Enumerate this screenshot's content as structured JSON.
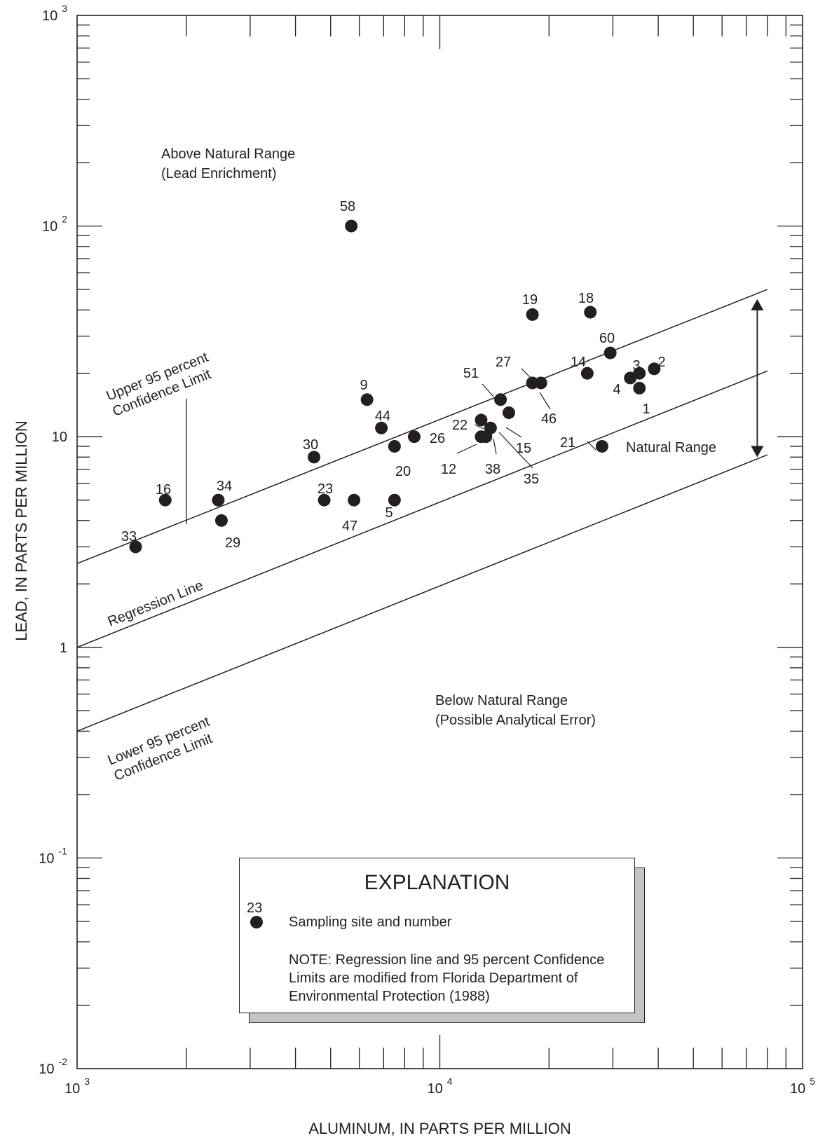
{
  "chart_data": {
    "type": "scatter",
    "xlabel": "ALUMINUM, IN PARTS PER MILLION",
    "ylabel": "LEAD, IN PARTS PER MILLION",
    "x_scale": "log",
    "y_scale": "log",
    "xlim": [
      1000,
      100000
    ],
    "ylim": [
      0.01,
      1000
    ],
    "x_ticks": [
      {
        "base": "10",
        "exp": "3",
        "value": 1000
      },
      {
        "base": "10",
        "exp": "4",
        "value": 10000
      },
      {
        "base": "10",
        "exp": "5",
        "value": 100000
      }
    ],
    "y_ticks": [
      {
        "base": "10",
        "exp": "-2",
        "value": 0.01
      },
      {
        "base": "10",
        "exp": "-1",
        "value": 0.1
      },
      {
        "base": "1",
        "exp": "",
        "value": 1
      },
      {
        "base": "10",
        "exp": "",
        "value": 10
      },
      {
        "base": "10",
        "exp": "2",
        "value": 100
      },
      {
        "base": "10",
        "exp": "3",
        "value": 1000
      }
    ],
    "points": [
      {
        "label": "1",
        "x": 35500,
        "y": 17
      },
      {
        "label": "2",
        "x": 39000,
        "y": 21
      },
      {
        "label": "3",
        "x": 35500,
        "y": 20
      },
      {
        "label": "4",
        "x": 33500,
        "y": 19
      },
      {
        "label": "5",
        "x": 7500,
        "y": 5
      },
      {
        "label": "9",
        "x": 6300,
        "y": 15
      },
      {
        "label": "12",
        "x": 13000,
        "y": 10
      },
      {
        "label": "14",
        "x": 25500,
        "y": 20
      },
      {
        "label": "15",
        "x": 15500,
        "y": 13
      },
      {
        "label": "16",
        "x": 1750,
        "y": 5
      },
      {
        "label": "18",
        "x": 26000,
        "y": 39
      },
      {
        "label": "19",
        "x": 18000,
        "y": 38
      },
      {
        "label": "20",
        "x": 7500,
        "y": 9
      },
      {
        "label": "21",
        "x": 28000,
        "y": 9
      },
      {
        "label": "22",
        "x": 13000,
        "y": 12
      },
      {
        "label": "23",
        "x": 4800,
        "y": 5
      },
      {
        "label": "26",
        "x": 8500,
        "y": 10
      },
      {
        "label": "27",
        "x": 18000,
        "y": 18
      },
      {
        "label": "29",
        "x": 2500,
        "y": 4
      },
      {
        "label": "30",
        "x": 4500,
        "y": 8
      },
      {
        "label": "33",
        "x": 1450,
        "y": 3
      },
      {
        "label": "34",
        "x": 2450,
        "y": 5
      },
      {
        "label": "35",
        "x": 13800,
        "y": 11
      },
      {
        "label": "38",
        "x": 13400,
        "y": 10
      },
      {
        "label": "44",
        "x": 6900,
        "y": 11
      },
      {
        "label": "46",
        "x": 19000,
        "y": 18
      },
      {
        "label": "47",
        "x": 5800,
        "y": 5
      },
      {
        "label": "51",
        "x": 14700,
        "y": 15
      },
      {
        "label": "58",
        "x": 5700,
        "y": 100
      },
      {
        "label": "60",
        "x": 29500,
        "y": 25
      }
    ],
    "lines": [
      {
        "name": "Upper 95 percent Confidence Limit",
        "label_lines": [
          "Upper 95 percent",
          "Confidence Limit"
        ],
        "x": [
          1000,
          80000
        ],
        "y": [
          2.5,
          50
        ]
      },
      {
        "name": "Regression Line",
        "label_lines": [
          "Regression Line"
        ],
        "x": [
          1000,
          80000
        ],
        "y": [
          1.0,
          20.5
        ]
      },
      {
        "name": "Lower 95 percent Confidence Limit",
        "label_lines": [
          "Lower 95 percent",
          "Confidence Limit"
        ],
        "x": [
          1000,
          80000
        ],
        "y": [
          0.4,
          8.2
        ]
      }
    ],
    "natural_range_arrow": {
      "x": 75000,
      "y": [
        45,
        8
      ]
    }
  },
  "annotations": {
    "above_line1": "Above Natural Range",
    "above_line2": "(Lead Enrichment)",
    "below_line1": "Below Natural Range",
    "below_line2": "(Possible Analytical Error)",
    "natural_range": "Natural Range"
  },
  "explanation": {
    "title": "EXPLANATION",
    "symbol_number": "23",
    "symbol_label": "Sampling site and number",
    "note_lines": [
      "NOTE: Regression line and 95 percent Confidence",
      "Limits are modified from Florida Department of",
      "Environmental Protection (1988)"
    ]
  },
  "colors": {
    "ink": "#231f20",
    "shadow": "#c4c4c6",
    "background": "#ffffff"
  }
}
